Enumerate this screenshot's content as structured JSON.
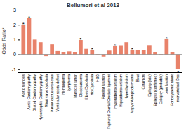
{
  "chart_data": {
    "type": "bar",
    "title": "Bellumori et al 2013",
    "ylabel": "Odds Ratio*",
    "categories": [
      "Aortic stenosis",
      "Aortic Cardiomyopathy",
      "Dilated Cardiomyopathy",
      "Hypertrophic Cardiomyopathy",
      "Mitral valve dysplasia",
      "Patent ductus arteriosus",
      "Ventricular septal defect",
      "Hemangioma",
      "Lymphoma",
      "Mast cell tumor",
      "Osteosarcoma",
      "Elbow Dysplasia",
      "Hip Dysplasia",
      "HOD",
      "Patellar luxation",
      "Ruptured Cranial Cruciate ligament",
      "Hyperadrenocorticism",
      "Hypoadrenocorticism",
      "Hyperthyroidism",
      "Atopy / Allergic dermatitis",
      "Bloat",
      "Cataracts",
      "Epilepsy (Idio)",
      "Epilepsy (confirmed)",
      "Epilepsy (probable)",
      "Lens luxation",
      "Portosystemic shunt",
      "Intervertebral Disc"
    ],
    "values": [
      2.0,
      2.45,
      1.0,
      0.82,
      -0.12,
      0.68,
      0.22,
      0.15,
      0.2,
      0.12,
      0.97,
      0.37,
      0.3,
      -0.05,
      -0.15,
      0.25,
      0.55,
      0.57,
      0.82,
      0.3,
      0.3,
      0.28,
      0.58,
      0.12,
      0.02,
      1.02,
      0.14,
      -1.0
    ],
    "color": "#E8826A",
    "ylim": [
      -1.2,
      3.0
    ],
    "yticks": [
      -1,
      0,
      1,
      2,
      3
    ],
    "annotations": [
      {
        "text": "*",
        "category": "Aortic stenosis"
      },
      {
        "text": "*",
        "category": "Aortic Cardiomyopathy"
      },
      {
        "text": "*",
        "category": "Osteosarcoma"
      },
      {
        "text": "*",
        "category": "Hip Dysplasia"
      },
      {
        "text": "*",
        "category": "Hyperadrenocorticism"
      },
      {
        "text": "*",
        "category": "Atopy / Allergic dermatitis"
      },
      {
        "text": "*",
        "category": "Lens luxation"
      },
      {
        "text": "*",
        "category": "Intervertebral Disc"
      }
    ]
  }
}
